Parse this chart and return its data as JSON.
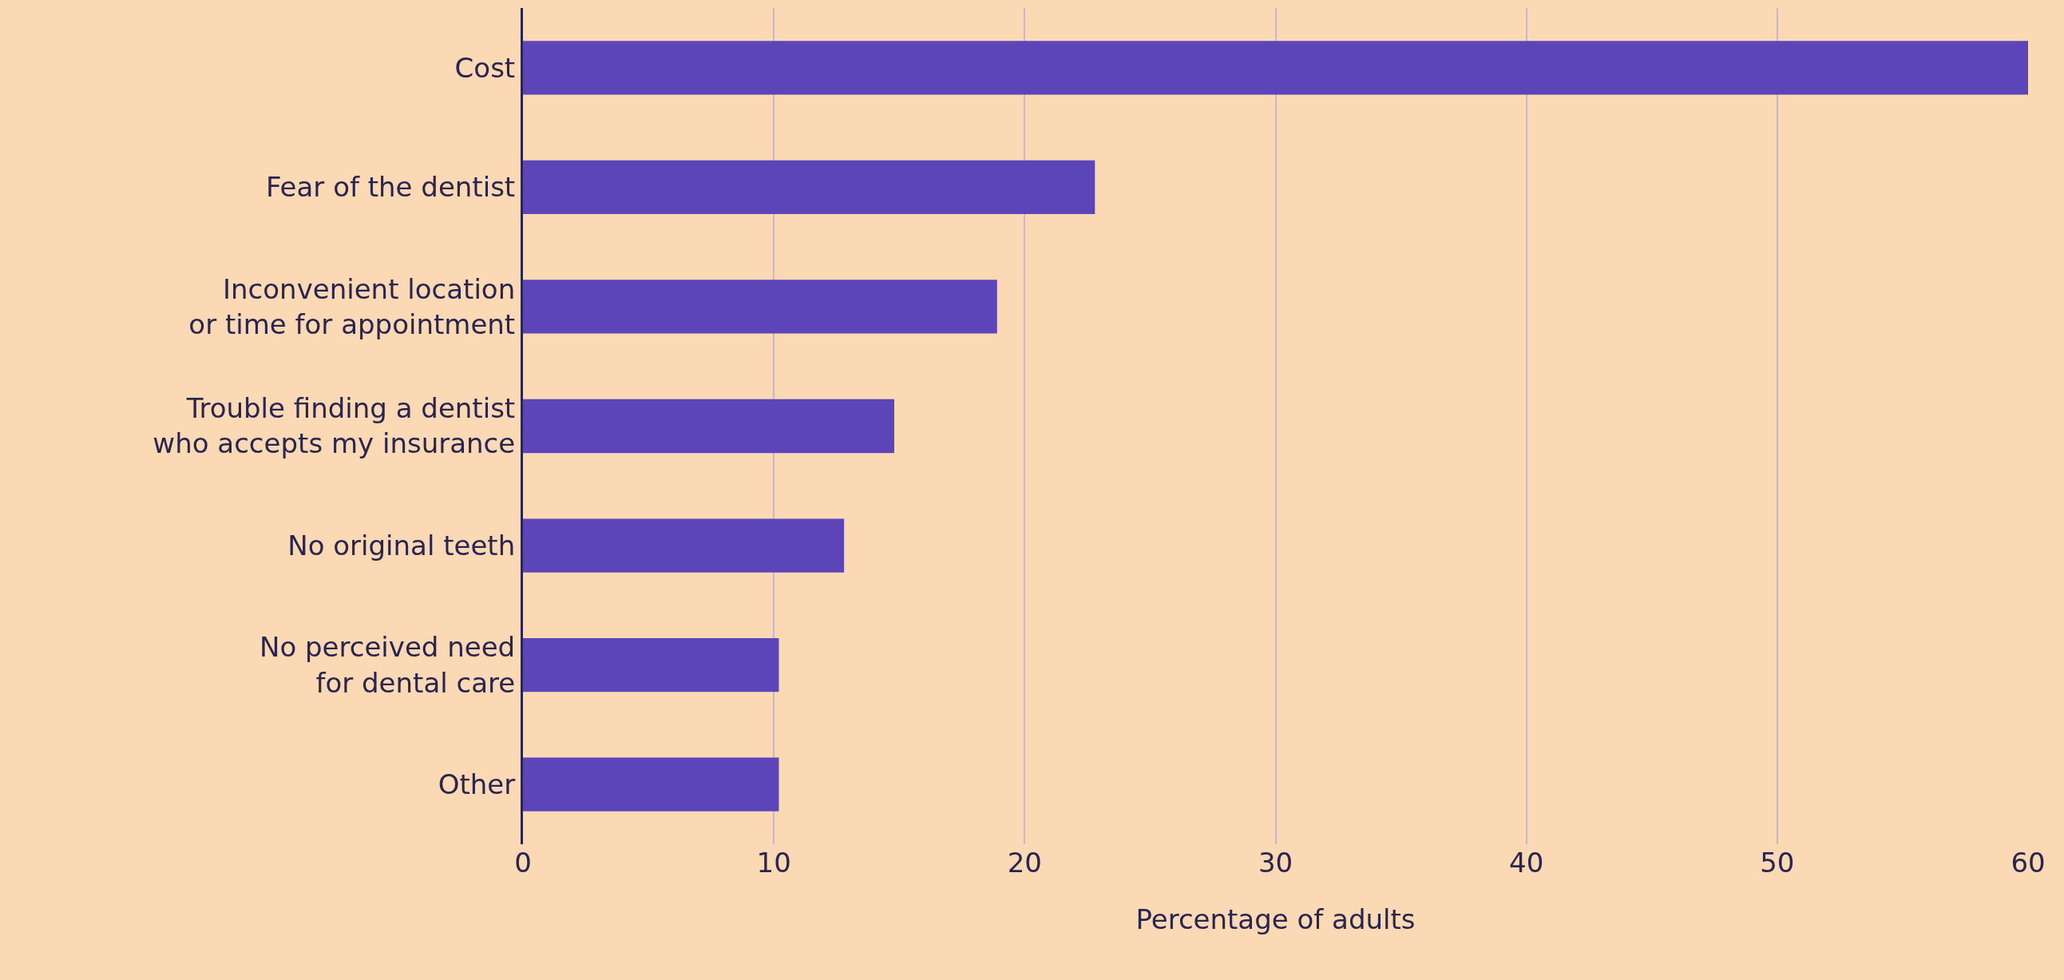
{
  "chart_data": {
    "type": "bar",
    "orientation": "horizontal",
    "xlabel": "Percentage of adults",
    "categories": [
      "Cost",
      "Fear of the dentist",
      "Inconvenient location\nor time for appointment",
      "Trouble finding a dentist\nwho accepts my insurance",
      "No original teeth",
      "No perceived need\nfor dental care",
      "Other"
    ],
    "values": [
      60,
      22.8,
      18.9,
      14.8,
      12.8,
      10.2,
      10.2
    ],
    "color": "#5b45b8",
    "xlim": [
      0,
      60
    ],
    "xticks": [
      0,
      10,
      20,
      30,
      40,
      50,
      60
    ],
    "grid": "x"
  }
}
